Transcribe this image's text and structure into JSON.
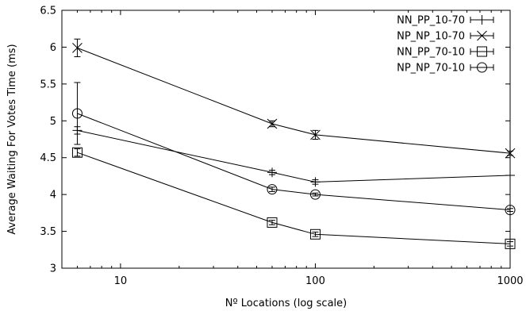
{
  "chart_data": {
    "type": "line",
    "title": "",
    "xlabel": "Nº Locations (log scale)",
    "ylabel": "Average Waiting For Votes Time (ms)",
    "x_scale": "log",
    "xlim": [
      5,
      1000
    ],
    "ylim": [
      3,
      6.5
    ],
    "xticks": [
      10,
      100,
      1000
    ],
    "xtick_labels": [
      "10",
      "100",
      "1000"
    ],
    "yticks": [
      3,
      3.5,
      4,
      4.5,
      5,
      5.5,
      6,
      6.5
    ],
    "ytick_labels": [
      "3",
      "3.5",
      "4",
      "4.5",
      "5",
      "5.5",
      "6",
      "6.5"
    ],
    "grid": false,
    "legend_position": "top-right",
    "x": [
      6,
      60,
      100,
      1000
    ],
    "series": [
      {
        "name": "NN_PP_10-70",
        "marker": "plus",
        "values": [
          4.87,
          4.3,
          4.17,
          4.26
        ],
        "err": [
          0.05,
          0.03,
          0.03,
          0.0
        ]
      },
      {
        "name": "NP_NP_10-70",
        "marker": "cross",
        "values": [
          5.99,
          4.96,
          4.81,
          4.56
        ],
        "err": [
          0.12,
          0.04,
          0.06,
          0.03
        ]
      },
      {
        "name": "NN_PP_70-10",
        "marker": "square",
        "values": [
          4.57,
          3.62,
          3.46,
          3.33
        ],
        "err": [
          0.05,
          0.03,
          0.03,
          0.03
        ]
      },
      {
        "name": "NP_NP_70-10",
        "marker": "circle",
        "values": [
          5.1,
          4.07,
          4.0,
          3.79
        ],
        "err": [
          0.42,
          0.03,
          0.02,
          0.02
        ]
      }
    ]
  }
}
